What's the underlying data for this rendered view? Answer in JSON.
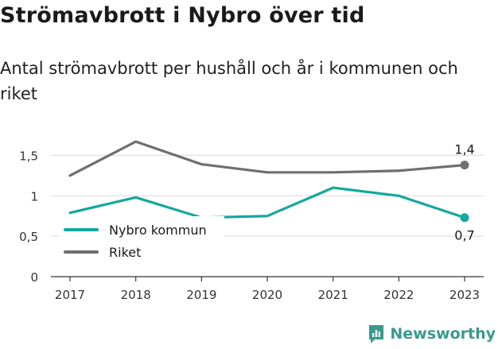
{
  "title": "Strömavbrott i Nybro över tid",
  "subtitle": "Antal strömavbrott per hushåll och år i kommunen och riket",
  "brand": {
    "name": "Newsworthy",
    "icon": "newsworthy-logo-icon"
  },
  "chart_data": {
    "type": "line",
    "categories": [
      "2017",
      "2018",
      "2019",
      "2020",
      "2021",
      "2022",
      "2023"
    ],
    "ylim": [
      0,
      1.75
    ],
    "yticks": [
      0,
      0.5,
      1,
      1.5
    ],
    "ytick_labels": [
      "0",
      "0,5",
      "1",
      "1,5"
    ],
    "grid": true,
    "legend_position": "lower-left",
    "series": [
      {
        "name": "Nybro kommun",
        "color": "#13a89e",
        "values": [
          0.79,
          0.98,
          0.73,
          0.75,
          1.1,
          1.0,
          0.73
        ],
        "end_label": "0,7"
      },
      {
        "name": "Riket",
        "color": "#6e6e73",
        "values": [
          1.25,
          1.67,
          1.39,
          1.29,
          1.29,
          1.31,
          1.38
        ],
        "end_label": "1,4"
      }
    ]
  }
}
